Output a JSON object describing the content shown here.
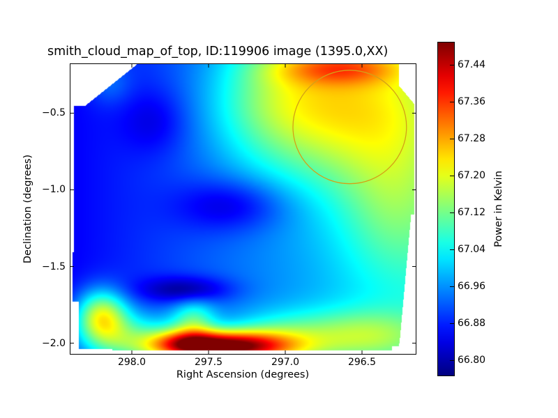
{
  "chart_data": {
    "type": "heatmap",
    "title": "smith_cloud_map_of_top, ID:119906 image (1395.0,XX)",
    "xlabel": "Right Ascension (degrees)",
    "ylabel": "Declination (degrees)",
    "xlim": [
      298.4,
      296.15
    ],
    "ylim": [
      -2.07,
      -0.18
    ],
    "x_inverted": true,
    "xticks": [
      298.0,
      297.5,
      297.0,
      296.5
    ],
    "xtick_labels": [
      "298.0",
      "297.5",
      "297.0",
      "296.5"
    ],
    "yticks": [
      -0.5,
      -1.0,
      -1.5,
      -2.0
    ],
    "ytick_labels": [
      "−0.5",
      "−1.0",
      "−1.5",
      "−2.0"
    ],
    "colormap": "jet",
    "colorbar": {
      "label": "Power in Kelvin",
      "vmin": 66.765,
      "vmax": 67.49,
      "ticks": [
        67.44,
        67.36,
        67.28,
        67.2,
        67.12,
        67.04,
        66.96,
        66.88,
        66.8
      ],
      "tick_labels": [
        "67.44",
        "67.36",
        "67.28",
        "67.20",
        "67.12",
        "67.04",
        "66.96",
        "66.88",
        "66.80"
      ]
    },
    "grid": false,
    "base_value": 66.93,
    "blobs": [
      {
        "ra": 297.4,
        "dec": -2.02,
        "sx": 0.28,
        "sy": 0.07,
        "amp": 0.53
      },
      {
        "ra": 297.65,
        "dec": -2.0,
        "sx": 0.15,
        "sy": 0.06,
        "amp": 0.18
      },
      {
        "ra": 297.05,
        "dec": -1.98,
        "sx": 0.25,
        "sy": 0.12,
        "amp": 0.14
      },
      {
        "ra": 298.2,
        "dec": -1.82,
        "sx": 0.12,
        "sy": 0.12,
        "amp": 0.3
      },
      {
        "ra": 298.0,
        "dec": -1.98,
        "sx": 0.25,
        "sy": 0.12,
        "amp": 0.2
      },
      {
        "ra": 297.6,
        "dec": -1.85,
        "sx": 0.1,
        "sy": 0.1,
        "amp": 0.15
      },
      {
        "ra": 296.5,
        "dec": -1.95,
        "sx": 0.3,
        "sy": 0.12,
        "amp": 0.16
      },
      {
        "ra": 296.6,
        "dec": -0.45,
        "sx": 0.45,
        "sy": 0.35,
        "amp": 0.22
      },
      {
        "ra": 296.65,
        "dec": -0.2,
        "sx": 0.3,
        "sy": 0.08,
        "amp": 0.18
      },
      {
        "ra": 296.3,
        "dec": -1.1,
        "sx": 0.25,
        "sy": 0.35,
        "amp": 0.1
      },
      {
        "ra": 297.1,
        "dec": -0.4,
        "sx": 0.3,
        "sy": 0.3,
        "amp": 0.1
      },
      {
        "ra": 297.35,
        "dec": -1.1,
        "sx": 0.25,
        "sy": 0.12,
        "amp": -0.1
      },
      {
        "ra": 297.65,
        "dec": -1.65,
        "sx": 0.2,
        "sy": 0.06,
        "amp": -0.13
      },
      {
        "ra": 297.85,
        "dec": -0.55,
        "sx": 0.15,
        "sy": 0.15,
        "amp": -0.06
      },
      {
        "ra": 298.15,
        "dec": -0.3,
        "sx": 0.1,
        "sy": 0.1,
        "amp": 0.06
      }
    ],
    "circle": {
      "ra_center": 296.58,
      "dec_center": -0.59,
      "radius_deg": 0.37,
      "color": "#d4a017"
    }
  }
}
